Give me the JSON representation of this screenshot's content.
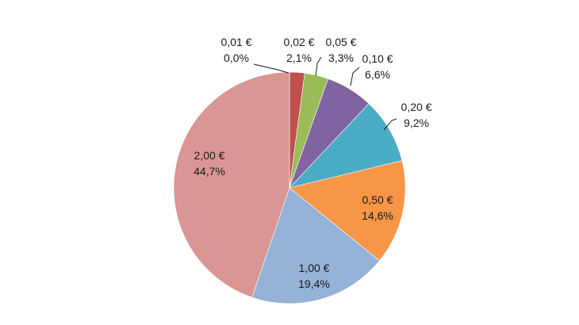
{
  "chart_data": {
    "type": "pie",
    "title": "",
    "start_angle_deg": 90,
    "direction": "clockwise",
    "slices": [
      {
        "category": "0,01 €",
        "value": 0.0,
        "label": "0,0%",
        "color": "#4F81BD"
      },
      {
        "category": "0,02 €",
        "value": 2.1,
        "label": "2,1%",
        "color": "#C0504D"
      },
      {
        "category": "0,05 €",
        "value": 3.3,
        "label": "3,3%",
        "color": "#9BBB59"
      },
      {
        "category": "0,10 €",
        "value": 6.6,
        "label": "6,6%",
        "color": "#8064A2"
      },
      {
        "category": "0,20 €",
        "value": 9.2,
        "label": "9,2%",
        "color": "#4BACC6"
      },
      {
        "category": "0,50 €",
        "value": 14.6,
        "label": "14,6%",
        "color": "#F79646"
      },
      {
        "category": "1,00 €",
        "value": 19.4,
        "label": "19,4%",
        "color": "#95B3D7"
      },
      {
        "category": "2,00 €",
        "value": 44.7,
        "label": "44,7%",
        "color": "#D99694"
      }
    ]
  }
}
